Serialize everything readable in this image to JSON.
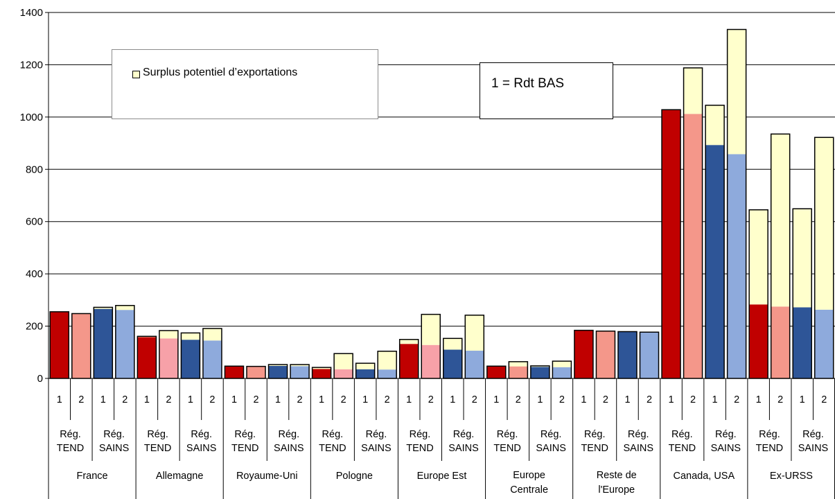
{
  "chart_data": {
    "type": "bar",
    "stacked": true,
    "ylim": [
      0,
      1400
    ],
    "yticks": [
      0,
      200,
      400,
      600,
      800,
      1000,
      1200,
      1400
    ],
    "grid": true,
    "legend": {
      "label": "Surplus potentiel d’exportations",
      "placement": "top-left"
    },
    "annotation": "1 = Rdt BAS",
    "colors": {
      "tend_1": "#c00000",
      "tend_2": "#f4978a",
      "tend_2_light": "#f7a1a8",
      "sains_1": "#2e5597",
      "sains_2": "#8eaadc",
      "surplus": "#ffffcc"
    },
    "regions": [
      {
        "label": "France",
        "bars": [
          {
            "scenario": "Rég. TEND",
            "level": "1",
            "base": 255,
            "surplus": 0
          },
          {
            "scenario": "Rég. TEND",
            "level": "2",
            "base": 248,
            "surplus": 0
          },
          {
            "scenario": "Rég. SAINS",
            "level": "1",
            "base": 266,
            "surplus": 6
          },
          {
            "scenario": "Rég. SAINS",
            "level": "2",
            "base": 262,
            "surplus": 17
          }
        ]
      },
      {
        "label": "Allemagne",
        "bars": [
          {
            "scenario": "Rég. TEND",
            "level": "1",
            "base": 158,
            "surplus": 3
          },
          {
            "scenario": "Rég. TEND",
            "level": "2",
            "base": 153,
            "surplus": 30
          },
          {
            "scenario": "Rég. SAINS",
            "level": "1",
            "base": 148,
            "surplus": 26
          },
          {
            "scenario": "Rég. SAINS",
            "level": "2",
            "base": 145,
            "surplus": 46
          }
        ]
      },
      {
        "label": "Royaume-Uni",
        "bars": [
          {
            "scenario": "Rég. TEND",
            "level": "1",
            "base": 47,
            "surplus": 0
          },
          {
            "scenario": "Rég. TEND",
            "level": "2",
            "base": 46,
            "surplus": 0
          },
          {
            "scenario": "Rég. SAINS",
            "level": "1",
            "base": 48,
            "surplus": 5
          },
          {
            "scenario": "Rég. SAINS",
            "level": "2",
            "base": 47,
            "surplus": 6
          }
        ]
      },
      {
        "label": "Pologne",
        "bars": [
          {
            "scenario": "Rég. TEND",
            "level": "1",
            "base": 36,
            "surplus": 6
          },
          {
            "scenario": "Rég. TEND",
            "level": "2",
            "base": 35,
            "surplus": 60
          },
          {
            "scenario": "Rég. SAINS",
            "level": "1",
            "base": 35,
            "surplus": 23
          },
          {
            "scenario": "Rég. SAINS",
            "level": "2",
            "base": 34,
            "surplus": 70
          }
        ]
      },
      {
        "label": "Europe Est",
        "bars": [
          {
            "scenario": "Rég. TEND",
            "level": "1",
            "base": 132,
            "surplus": 17
          },
          {
            "scenario": "Rég. TEND",
            "level": "2",
            "base": 128,
            "surplus": 117
          },
          {
            "scenario": "Rég. SAINS",
            "level": "1",
            "base": 110,
            "surplus": 43
          },
          {
            "scenario": "Rég. SAINS",
            "level": "2",
            "base": 106,
            "surplus": 136
          }
        ]
      },
      {
        "label": "Europe Centrale",
        "bars": [
          {
            "scenario": "Rég. TEND",
            "level": "1",
            "base": 47,
            "surplus": 0
          },
          {
            "scenario": "Rég. TEND",
            "level": "2",
            "base": 46,
            "surplus": 18
          },
          {
            "scenario": "Rég. SAINS",
            "level": "1",
            "base": 44,
            "surplus": 4
          },
          {
            "scenario": "Rég. SAINS",
            "level": "2",
            "base": 43,
            "surplus": 23
          }
        ]
      },
      {
        "label": "Reste de l'Europe",
        "bars": [
          {
            "scenario": "Rég. TEND",
            "level": "1",
            "base": 184,
            "surplus": 0
          },
          {
            "scenario": "Rég. TEND",
            "level": "2",
            "base": 181,
            "surplus": 0
          },
          {
            "scenario": "Rég. SAINS",
            "level": "1",
            "base": 179,
            "surplus": 0
          },
          {
            "scenario": "Rég. SAINS",
            "level": "2",
            "base": 177,
            "surplus": 0
          }
        ]
      },
      {
        "label": "Canada, USA",
        "bars": [
          {
            "scenario": "Rég. TEND",
            "level": "1",
            "base": 1028,
            "surplus": 0
          },
          {
            "scenario": "Rég. TEND",
            "level": "2",
            "base": 1012,
            "surplus": 176
          },
          {
            "scenario": "Rég. SAINS",
            "level": "1",
            "base": 893,
            "surplus": 152
          },
          {
            "scenario": "Rég. SAINS",
            "level": "2",
            "base": 858,
            "surplus": 477
          }
        ]
      },
      {
        "label": "Ex-URSS",
        "bars": [
          {
            "scenario": "Rég. TEND",
            "level": "1",
            "base": 283,
            "surplus": 362
          },
          {
            "scenario": "Rég. TEND",
            "level": "2",
            "base": 275,
            "surplus": 660
          },
          {
            "scenario": "Rég. SAINS",
            "level": "1",
            "base": 272,
            "surplus": 377
          },
          {
            "scenario": "Rég. SAINS",
            "level": "2",
            "base": 263,
            "surplus": 659
          }
        ]
      }
    ]
  }
}
